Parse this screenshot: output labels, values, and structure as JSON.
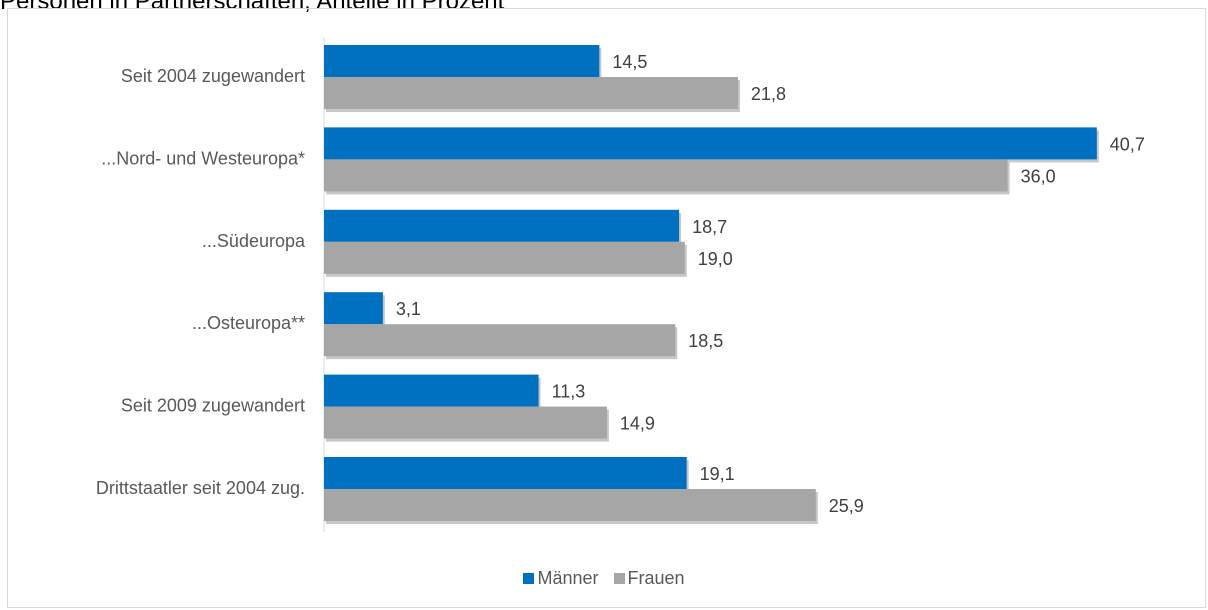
{
  "title": "Personen in Partnerschaften, Anteile in Prozent",
  "chart_data": {
    "type": "bar",
    "orientation": "horizontal",
    "categories": [
      "Seit 2004 zugewandert",
      "...Nord- und Westeuropa*",
      "...Südeuropa",
      "...Osteuropa**",
      "Seit 2009 zugewandert",
      "Drittstaatler seit 2004 zug."
    ],
    "series": [
      {
        "name": "Männer",
        "color": "#0070C0",
        "values": [
          14.5,
          40.7,
          18.7,
          3.1,
          11.3,
          19.1
        ],
        "labels": [
          "14,5",
          "40,7",
          "18,7",
          "3,1",
          "11,3",
          "19,1"
        ]
      },
      {
        "name": "Frauen",
        "color": "#A6A6A6",
        "values": [
          21.8,
          36.0,
          19.0,
          18.5,
          14.9,
          25.9
        ],
        "labels": [
          "21,8",
          "36,0",
          "19,0",
          "18,5",
          "14,9",
          "25,9"
        ]
      }
    ],
    "xlim": [
      0,
      41.5
    ],
    "legend_position": "bottom",
    "grid": false
  }
}
